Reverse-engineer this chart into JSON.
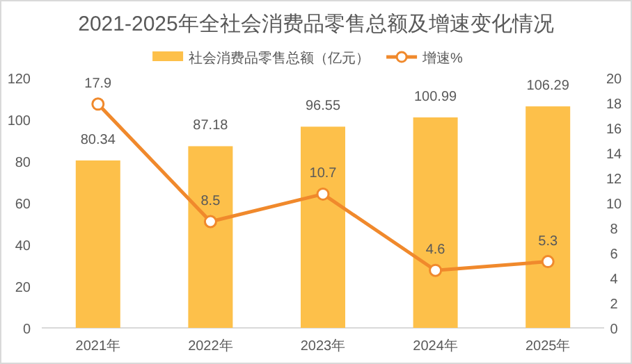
{
  "chart_data": {
    "type": "bar",
    "title": "2021-2025年全社会消费品零售总额及增速变化情况",
    "categories": [
      "2021年",
      "2022年",
      "2023年",
      "2024年",
      "2025年"
    ],
    "series": [
      {
        "name": "社会消费品零售总额（亿元）",
        "color": "#fdc04a",
        "values": [
          80.34,
          87.18,
          96.55,
          100.99,
          106.29
        ]
      },
      {
        "name": "增速%",
        "type": "line",
        "axis": "y2",
        "color": "#f0892c",
        "marker": "circle",
        "values": [
          17.9,
          8.5,
          10.7,
          4.6,
          5.3
        ]
      }
    ],
    "ylim": [
      0,
      120
    ],
    "yticks": [
      0,
      20,
      40,
      60,
      80,
      100,
      120
    ],
    "y2lim": [
      0,
      20
    ],
    "y2ticks": [
      0,
      2,
      4,
      6,
      8,
      10,
      12,
      14,
      16,
      18,
      20
    ],
    "data_labels": true,
    "legend": "top",
    "grid": false
  }
}
